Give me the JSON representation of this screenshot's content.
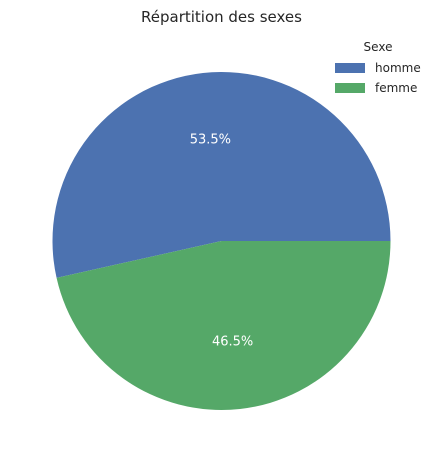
{
  "chart_data": {
    "type": "pie",
    "title": "Répartition des sexes",
    "legend_title": "Sexe",
    "legend_position": "top-right",
    "startangle": 0,
    "slices": [
      {
        "label": "homme",
        "value": 53.5,
        "pct_label": "53.5%",
        "color": "#4c72b0"
      },
      {
        "label": "femme",
        "value": 46.5,
        "pct_label": "46.5%",
        "color": "#55a868"
      }
    ]
  }
}
